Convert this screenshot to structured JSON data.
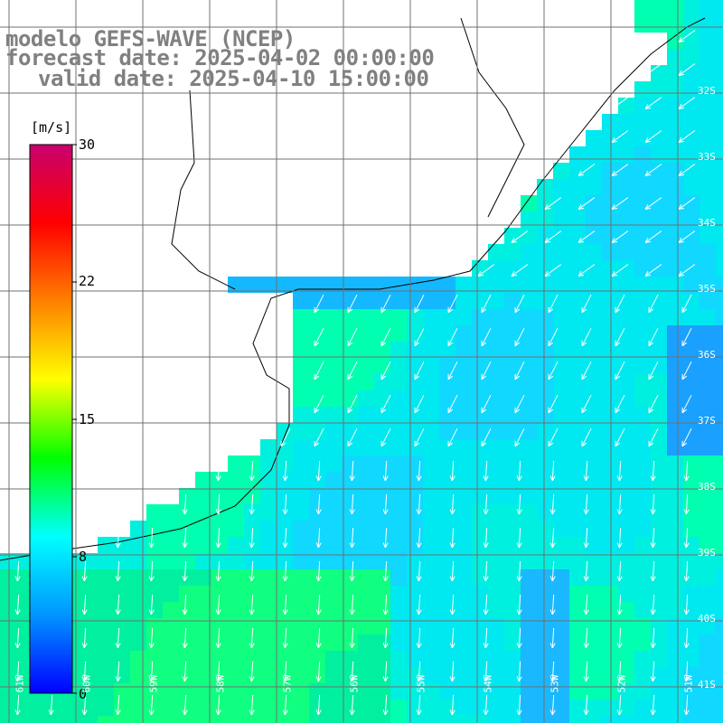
{
  "title": {
    "line1": "modelo GEFS-WAVE (NCEP)",
    "line2": "forecast date: 2025-04-02 00:00:00",
    "line3": "valid date: 2025-04-10 15:00:00"
  },
  "colorbar": {
    "unit": "[m/s]",
    "ticks": [
      "30",
      "22",
      "15",
      "8",
      "0"
    ],
    "colors": [
      "#0000ff",
      "#0096ff",
      "#00ffff",
      "#00ff00",
      "#ffff00",
      "#ff8000",
      "#ff0000",
      "#c8006e"
    ]
  },
  "map": {
    "land_color": "#ffffff",
    "coast_color": "#000000",
    "grid_color": "#707070",
    "arrow_color": "#ffffff",
    "lat_labels": [
      "32S",
      "33S",
      "34S",
      "35S",
      "36S",
      "37S",
      "38S",
      "39S",
      "40S",
      "41S"
    ],
    "lon_labels": [
      "61W",
      "60W",
      "59W",
      "58W",
      "57W",
      "56W",
      "55W",
      "54W",
      "53W",
      "52W",
      "51W"
    ]
  }
}
